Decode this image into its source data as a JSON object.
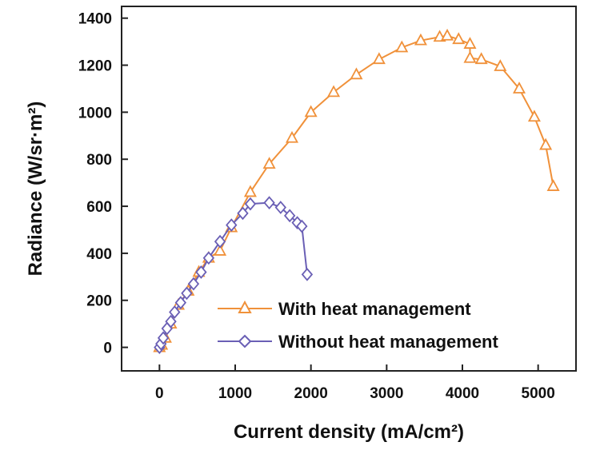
{
  "chart_data": {
    "type": "line",
    "xlabel": "Current density (mA/cm²)",
    "ylabel": "Radiance (W/sr·m²)",
    "xlim": [
      -500,
      5500
    ],
    "ylim": [
      -100,
      1450
    ],
    "x_ticks": [
      0,
      1000,
      2000,
      3000,
      4000,
      5000
    ],
    "y_ticks": [
      0,
      200,
      400,
      600,
      800,
      1000,
      1200,
      1400
    ],
    "legend_position": "lower-right",
    "series": [
      {
        "name": "With heat management",
        "color": "#f0913a",
        "marker": "triangle",
        "x": [
          0,
          30,
          80,
          150,
          250,
          380,
          520,
          650,
          800,
          950,
          1200,
          1450,
          1750,
          2000,
          2300,
          2600,
          2900,
          3200,
          3450,
          3700,
          3800,
          3950,
          4100,
          4100,
          4250,
          4500,
          4750,
          4950,
          5100,
          5200
        ],
        "y": [
          0,
          10,
          40,
          100,
          180,
          240,
          320,
          380,
          410,
          510,
          660,
          780,
          890,
          1000,
          1085,
          1160,
          1225,
          1275,
          1305,
          1320,
          1325,
          1310,
          1290,
          1230,
          1225,
          1195,
          1100,
          980,
          860,
          685
        ]
      },
      {
        "name": "Without heat management",
        "color": "#6a5fb5",
        "marker": "diamond",
        "x": [
          0,
          20,
          50,
          100,
          150,
          200,
          280,
          360,
          450,
          550,
          650,
          800,
          950,
          1100,
          1200,
          1450,
          1600,
          1720,
          1820,
          1880,
          1950
        ],
        "y": [
          0,
          15,
          40,
          80,
          110,
          150,
          190,
          230,
          270,
          320,
          380,
          450,
          520,
          570,
          610,
          615,
          595,
          560,
          530,
          515,
          310
        ]
      }
    ]
  }
}
